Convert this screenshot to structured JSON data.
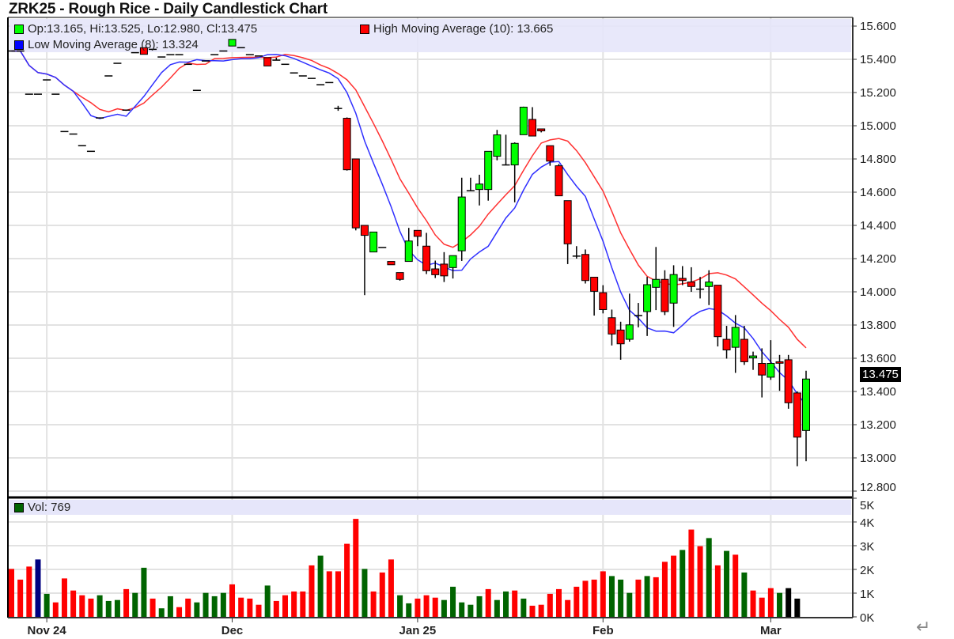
{
  "title": "ZRK25 - Rough Rice - Daily Candlestick Chart",
  "legend": {
    "ohlc": "Op:13.165, Hi:13.525, Lo:12.980, Cl:13.475",
    "high_ma": "High Moving Average (10): 13.665",
    "low_ma": "Low Moving Average (8): 13.324",
    "volume": "Vol: 769",
    "last_price": "13.475"
  },
  "colors": {
    "up": "#00ff00",
    "down": "#ff0000",
    "high_ma": "#ff3030",
    "low_ma": "#3030ff",
    "vol_up": "#006400",
    "vol_down": "#ff0000",
    "vol_highlight": "#000080",
    "legend_bg": "#e6e6fa"
  },
  "icons": {
    "return": "↵"
  },
  "chart_data": [
    {
      "type": "candlestick",
      "y_axis": {
        "range": [
          12.8,
          15.6
        ],
        "ticks": [
          "15.600",
          "15.400",
          "15.200",
          "15.000",
          "14.800",
          "14.600",
          "14.400",
          "14.200",
          "14.000",
          "13.800",
          "13.600",
          "13.400",
          "13.200",
          "13.000",
          "12.800"
        ],
        "side": "right"
      },
      "x_ticks": [
        {
          "label": "Nov 24",
          "bar": 4
        },
        {
          "label": "Dec",
          "bar": 25
        },
        {
          "label": "Jan 25",
          "bar": 46
        },
        {
          "label": "Feb",
          "bar": 67
        },
        {
          "label": "Mar",
          "bar": 86
        }
      ],
      "grid": true,
      "moving_averages": [
        {
          "name": "High Moving Average (10)",
          "source": "high",
          "period": 10
        },
        {
          "name": "Low Moving Average (8)",
          "source": "low",
          "period": 8
        }
      ],
      "ohlc": [
        [
          15.45,
          15.45,
          15.45,
          15.45
        ],
        [
          15.45,
          15.45,
          15.45,
          15.45
        ],
        [
          15.19,
          15.19,
          15.19,
          15.19
        ],
        [
          15.19,
          15.19,
          15.19,
          15.19
        ],
        [
          15.276,
          15.276,
          15.276,
          15.276
        ],
        [
          15.19,
          15.19,
          15.19,
          15.19
        ],
        [
          14.965,
          14.965,
          14.965,
          14.965
        ],
        [
          14.95,
          14.95,
          14.95,
          14.95
        ],
        [
          14.88,
          14.88,
          14.88,
          14.88
        ],
        [
          14.846,
          14.846,
          14.846,
          14.846
        ],
        [
          15.047,
          15.047,
          15.047,
          15.047
        ],
        [
          15.3,
          15.3,
          15.3,
          15.3
        ],
        [
          15.376,
          15.376,
          15.376,
          15.376
        ],
        [
          15.094,
          15.094,
          15.094,
          15.094
        ],
        [
          15.44,
          15.44,
          15.44,
          15.44
        ],
        [
          15.47,
          15.47,
          15.43,
          15.43
        ],
        [
          15.46,
          15.46,
          15.46,
          15.46
        ],
        [
          15.414,
          15.414,
          15.414,
          15.414
        ],
        [
          15.428,
          15.428,
          15.428,
          15.428
        ],
        [
          15.428,
          15.428,
          15.428,
          15.428
        ],
        [
          15.37,
          15.37,
          15.37,
          15.37
        ],
        [
          15.213,
          15.213,
          15.213,
          15.213
        ],
        [
          15.39,
          15.39,
          15.39,
          15.39
        ],
        [
          15.428,
          15.428,
          15.428,
          15.428
        ],
        [
          15.45,
          15.45,
          15.45,
          15.45
        ],
        [
          15.48,
          15.52,
          15.48,
          15.52
        ],
        [
          15.47,
          15.47,
          15.47,
          15.47
        ],
        [
          15.428,
          15.428,
          15.428,
          15.428
        ],
        [
          15.42,
          15.42,
          15.42,
          15.42
        ],
        [
          15.41,
          15.41,
          15.36,
          15.36
        ],
        [
          15.395,
          15.41,
          15.395,
          15.395
        ],
        [
          15.37,
          15.37,
          15.37,
          15.37
        ],
        [
          15.318,
          15.318,
          15.318,
          15.318
        ],
        [
          15.3,
          15.3,
          15.3,
          15.3
        ],
        [
          15.285,
          15.285,
          15.285,
          15.285
        ],
        [
          15.247,
          15.247,
          15.247,
          15.247
        ],
        [
          15.26,
          15.26,
          15.26,
          15.26
        ],
        [
          15.104,
          15.12,
          15.09,
          15.104
        ],
        [
          15.045,
          15.05,
          14.73,
          14.735
        ],
        [
          14.8,
          14.8,
          14.37,
          14.385
        ],
        [
          14.4,
          14.4,
          13.98,
          14.34
        ],
        [
          14.24,
          14.36,
          14.24,
          14.36
        ],
        [
          14.267,
          14.267,
          14.267,
          14.267
        ],
        [
          14.183,
          14.183,
          14.163,
          14.163
        ],
        [
          14.116,
          14.116,
          14.067,
          14.075
        ],
        [
          14.183,
          14.385,
          14.183,
          14.306
        ],
        [
          14.37,
          14.37,
          14.275,
          14.334
        ],
        [
          14.275,
          14.355,
          14.107,
          14.127
        ],
        [
          14.138,
          14.188,
          14.083,
          14.103
        ],
        [
          14.167,
          14.239,
          14.059,
          14.096
        ],
        [
          14.146,
          14.218,
          14.08,
          14.218
        ],
        [
          14.247,
          14.687,
          14.186,
          14.571
        ],
        [
          14.609,
          14.687,
          14.609,
          14.609
        ],
        [
          14.616,
          14.705,
          14.52,
          14.649
        ],
        [
          14.616,
          14.846,
          14.549,
          14.846
        ],
        [
          14.816,
          14.975,
          14.792,
          14.945
        ],
        [
          14.764,
          14.946,
          14.764,
          14.764
        ],
        [
          14.764,
          14.9,
          14.539,
          14.894
        ],
        [
          14.946,
          15.115,
          14.946,
          15.112
        ],
        [
          15.038,
          15.112,
          14.938,
          14.938
        ],
        [
          14.981,
          14.981,
          14.96,
          14.969
        ],
        [
          14.88,
          14.88,
          14.759,
          14.787
        ],
        [
          14.759,
          14.77,
          14.578,
          14.578
        ],
        [
          14.549,
          14.549,
          14.167,
          14.289
        ],
        [
          14.215,
          14.275,
          14.2,
          14.215
        ],
        [
          14.225,
          14.255,
          14.05,
          14.068
        ],
        [
          14.088,
          14.088,
          13.857,
          14.003
        ],
        [
          13.995,
          14.04,
          13.87,
          13.893
        ],
        [
          13.844,
          13.893,
          13.677,
          13.746
        ],
        [
          13.77,
          13.82,
          13.591,
          13.687
        ],
        [
          13.714,
          13.989,
          13.7,
          13.801
        ],
        [
          13.857,
          13.933,
          13.786,
          13.857
        ],
        [
          13.881,
          14.09,
          13.734,
          14.043
        ],
        [
          14.027,
          14.27,
          13.89,
          14.075
        ],
        [
          14.075,
          14.13,
          13.86,
          13.881
        ],
        [
          13.932,
          14.16,
          13.789,
          14.104
        ],
        [
          14.081,
          14.155,
          14.04,
          14.068
        ],
        [
          14.059,
          14.148,
          14.0,
          14.032
        ],
        [
          14.016,
          14.09,
          13.96,
          14.016
        ],
        [
          14.032,
          14.13,
          13.92,
          14.059
        ],
        [
          14.04,
          14.04,
          13.671,
          13.73
        ],
        [
          13.714,
          13.795,
          13.598,
          13.65
        ],
        [
          13.666,
          13.86,
          13.512,
          13.786
        ],
        [
          13.714,
          13.795,
          13.56,
          13.579
        ],
        [
          13.602,
          13.64,
          13.53,
          13.614
        ],
        [
          13.569,
          13.66,
          13.364,
          13.499
        ],
        [
          13.486,
          13.709,
          13.47,
          13.569
        ],
        [
          13.579,
          13.62,
          13.404,
          13.57
        ],
        [
          13.591,
          13.62,
          13.296,
          13.332
        ],
        [
          13.391,
          13.4,
          12.95,
          13.125
        ],
        [
          13.165,
          13.525,
          12.98,
          13.475
        ]
      ]
    },
    {
      "type": "bar",
      "title": "Vol: 769",
      "y_axis": {
        "range": [
          0,
          5000
        ],
        "ticks": [
          "5K",
          "4K",
          "3K",
          "2K",
          "1K",
          "0K"
        ],
        "side": "right"
      },
      "values": [
        2020,
        1570,
        2120,
        2420,
        970,
        610,
        1620,
        1110,
        910,
        770,
        910,
        670,
        710,
        1170,
        1010,
        2070,
        770,
        360,
        870,
        410,
        770,
        610,
        1010,
        870,
        1010,
        1370,
        810,
        770,
        510,
        1320,
        670,
        910,
        1070,
        1070,
        2170,
        2580,
        1920,
        1920,
        3080,
        4130,
        2020,
        1070,
        1870,
        2420,
        910,
        570,
        770,
        910,
        810,
        710,
        1270,
        610,
        510,
        870,
        1170,
        710,
        1070,
        1110,
        770,
        470,
        510,
        970,
        1170,
        710,
        1270,
        1520,
        1570,
        1920,
        1720,
        1570,
        1010,
        1570,
        1720,
        1670,
        2320,
        2580,
        2820,
        3680,
        2980,
        3320,
        2170,
        2780,
        2620,
        1870,
        1110,
        810,
        1210,
        1010,
        1210,
        769
      ],
      "colors": "rrrbgrrrrrgggrggrggrrggggrrrrgrrrrrgrrrrgrrrggrrrgggggrggrgrrrrrrrrrgggrgrrrgrrgrgrgrrrg"
    }
  ]
}
